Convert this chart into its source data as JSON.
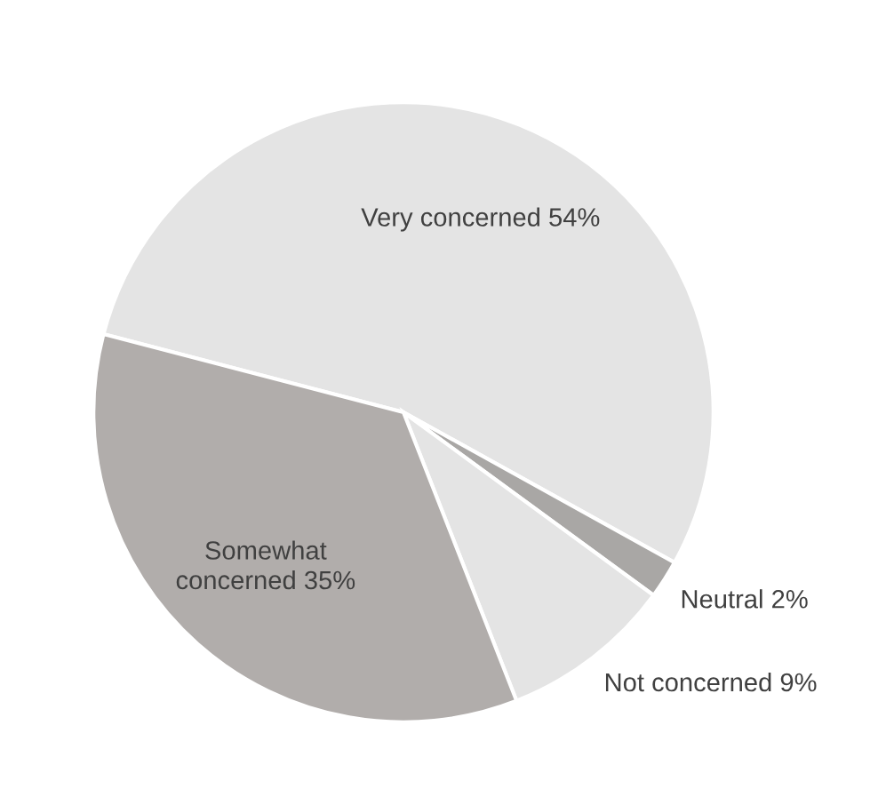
{
  "chart_data": {
    "type": "pie",
    "categories": [
      "Very concerned",
      "Neutral",
      "Not concerned",
      "Somewhat concerned"
    ],
    "values": [
      54,
      2,
      9,
      35
    ],
    "value_labels": [
      "54%",
      "2%",
      "9%",
      "35%"
    ],
    "colors": [
      "#e4e4e4",
      "#a9a7a5",
      "#e4e4e4",
      "#b1adab"
    ],
    "legend": false
  }
}
